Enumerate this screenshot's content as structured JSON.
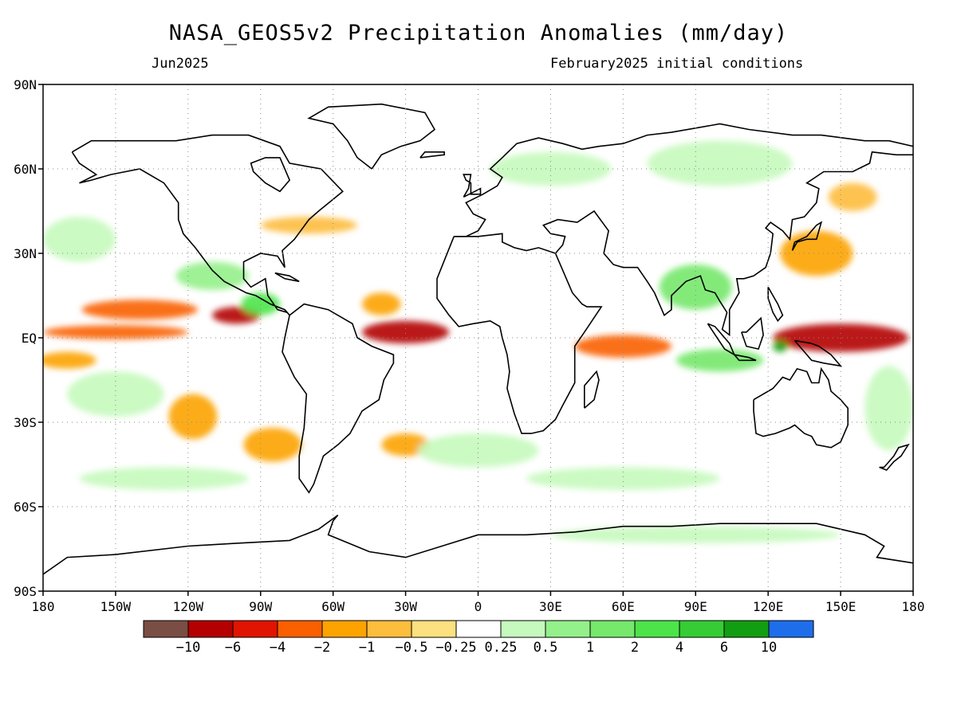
{
  "title": "NASA_GEOS5v2 Precipitation Anomalies (mm/day)",
  "subtitle_left": "Jun2025",
  "subtitle_right": "February2025 initial conditions",
  "map": {
    "lon_range": [
      -180,
      180
    ],
    "lat_range": [
      -90,
      90
    ],
    "grid": "dotted",
    "lon_ticks": [
      {
        "value": -180,
        "label": "180"
      },
      {
        "value": -150,
        "label": "150W"
      },
      {
        "value": -120,
        "label": "120W"
      },
      {
        "value": -90,
        "label": "90W"
      },
      {
        "value": -60,
        "label": "60W"
      },
      {
        "value": -30,
        "label": "30W"
      },
      {
        "value": 0,
        "label": "0"
      },
      {
        "value": 30,
        "label": "30E"
      },
      {
        "value": 60,
        "label": "60E"
      },
      {
        "value": 90,
        "label": "90E"
      },
      {
        "value": 120,
        "label": "120E"
      },
      {
        "value": 150,
        "label": "150E"
      },
      {
        "value": 180,
        "label": "180"
      }
    ],
    "lat_ticks": [
      {
        "value": 90,
        "label": "90N"
      },
      {
        "value": 60,
        "label": "60N"
      },
      {
        "value": 30,
        "label": "30N"
      },
      {
        "value": 0,
        "label": "EQ"
      },
      {
        "value": -30,
        "label": "30S"
      },
      {
        "value": -60,
        "label": "60S"
      },
      {
        "value": -90,
        "label": "90S"
      }
    ]
  },
  "colorbar": {
    "colors": [
      "#7a4e44",
      "#b40000",
      "#e01400",
      "#fa5f00",
      "#fca300",
      "#fdbd3d",
      "#fde07f",
      "#ffffff",
      "#c5f9bd",
      "#94f08a",
      "#76e86c",
      "#4de44a",
      "#35cc35",
      "#129e12",
      "#1e6eeb"
    ],
    "labels": [
      "-10",
      "-6",
      "-4",
      "-2",
      "-1",
      "-0.5",
      "-0.25",
      "0.25",
      "0.5",
      "1",
      "2",
      "4",
      "6",
      "10"
    ]
  },
  "anomaly_regions": [
    {
      "lon": -140,
      "lat": 10,
      "rx": 24,
      "ry": 3.5,
      "value": -3
    },
    {
      "lon": -100,
      "lat": 8,
      "rx": 10,
      "ry": 3,
      "value": -6
    },
    {
      "lon": -150,
      "lat": 2,
      "rx": 30,
      "ry": 2.5,
      "value": -3
    },
    {
      "lon": -170,
      "lat": -8,
      "rx": 12,
      "ry": 3,
      "value": -1
    },
    {
      "lon": -30,
      "lat": 2,
      "rx": 18,
      "ry": 4,
      "value": -6
    },
    {
      "lon": -40,
      "lat": 12,
      "rx": 8,
      "ry": 4,
      "value": -1
    },
    {
      "lon": 60,
      "lat": -3,
      "rx": 20,
      "ry": 4,
      "value": -2
    },
    {
      "lon": 150,
      "lat": 0,
      "rx": 28,
      "ry": 5,
      "value": -6
    },
    {
      "lon": 125,
      "lat": -3,
      "rx": 3,
      "ry": 2,
      "value": 10
    },
    {
      "lon": 140,
      "lat": 30,
      "rx": 15,
      "ry": 8,
      "value": -1
    },
    {
      "lon": 155,
      "lat": 50,
      "rx": 10,
      "ry": 5,
      "value": -0.5
    },
    {
      "lon": -118,
      "lat": -28,
      "rx": 10,
      "ry": 8,
      "value": -1
    },
    {
      "lon": -85,
      "lat": -38,
      "rx": 12,
      "ry": 6,
      "value": -1
    },
    {
      "lon": -30,
      "lat": -38,
      "rx": 10,
      "ry": 4,
      "value": -1
    },
    {
      "lon": -70,
      "lat": 40,
      "rx": 20,
      "ry": 3,
      "value": -0.5
    },
    {
      "lon": -110,
      "lat": 22,
      "rx": 15,
      "ry": 5,
      "value": 1
    },
    {
      "lon": -90,
      "lat": 12,
      "rx": 8,
      "ry": 4,
      "value": 4
    },
    {
      "lon": 90,
      "lat": 18,
      "rx": 15,
      "ry": 8,
      "value": 2
    },
    {
      "lon": 100,
      "lat": -8,
      "rx": 18,
      "ry": 4,
      "value": 2
    },
    {
      "lon": 30,
      "lat": 60,
      "rx": 25,
      "ry": 6,
      "value": 0.5
    },
    {
      "lon": 100,
      "lat": 62,
      "rx": 30,
      "ry": 8,
      "value": 0.5
    },
    {
      "lon": -130,
      "lat": -50,
      "rx": 35,
      "ry": 4,
      "value": 0.5
    },
    {
      "lon": 60,
      "lat": -50,
      "rx": 40,
      "ry": 4,
      "value": 0.5
    },
    {
      "lon": 90,
      "lat": -70,
      "rx": 60,
      "ry": 3,
      "value": 0.5
    },
    {
      "lon": -165,
      "lat": 35,
      "rx": 15,
      "ry": 8,
      "value": 0.5
    },
    {
      "lon": -150,
      "lat": -20,
      "rx": 20,
      "ry": 8,
      "value": 0.5
    },
    {
      "lon": 170,
      "lat": -25,
      "rx": 10,
      "ry": 15,
      "value": 0.5
    },
    {
      "lon": 0,
      "lat": -40,
      "rx": 25,
      "ry": 6,
      "value": 0.5
    }
  ]
}
